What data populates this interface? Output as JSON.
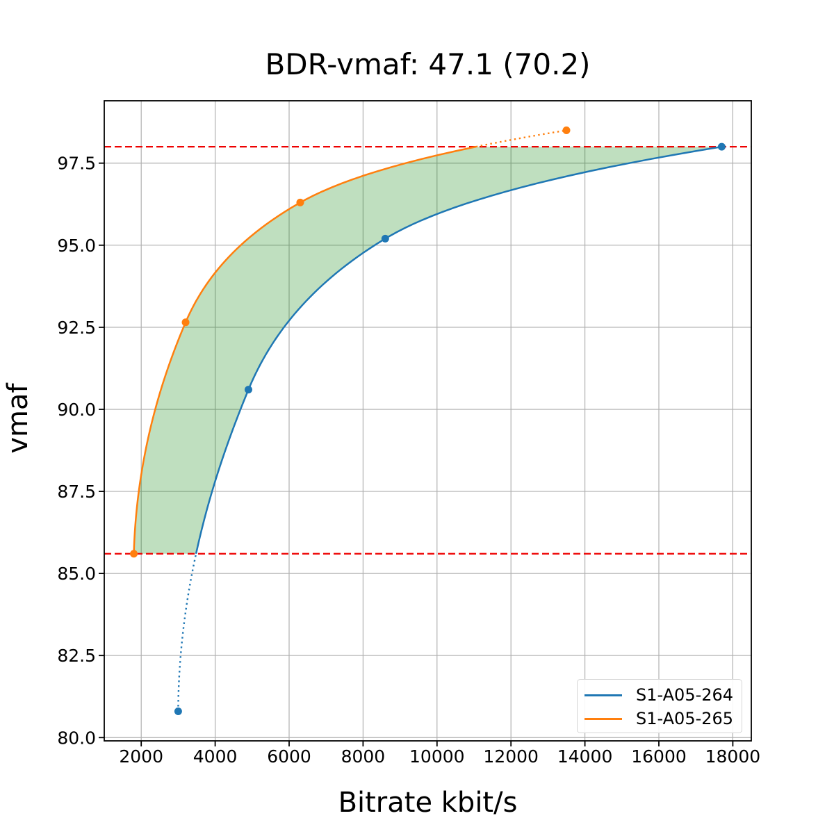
{
  "figure": {
    "title": "BDR-vmaf: 47.1 (70.2)",
    "xlabel": "Bitrate kbit/s",
    "ylabel": "vmaf"
  },
  "legend": {
    "position": "lower right",
    "items": [
      {
        "label": "S1-A05-264",
        "color": "#1f77b4"
      },
      {
        "label": "S1-A05-265",
        "color": "#ff7f0e"
      }
    ]
  },
  "chart_data": {
    "type": "line",
    "title": "BDR-vmaf: 47.1 (70.2)",
    "xlabel": "Bitrate kbit/s",
    "ylabel": "vmaf",
    "bdr_value": 47.1,
    "bdr_value_parenthesized": 70.2,
    "xlim": [
      1000,
      18500
    ],
    "ylim": [
      79.9,
      99.4
    ],
    "x_ticks": [
      2000,
      4000,
      6000,
      8000,
      10000,
      12000,
      14000,
      16000,
      18000
    ],
    "x_tick_labels": [
      "2000",
      "4000",
      "6000",
      "8000",
      "10000",
      "12000",
      "14000",
      "16000",
      "18000"
    ],
    "y_ticks": [
      80.0,
      82.5,
      85.0,
      87.5,
      90.0,
      92.5,
      95.0,
      97.5
    ],
    "y_tick_labels": [
      "80.0",
      "82.5",
      "85.0",
      "87.5",
      "90.0",
      "92.5",
      "95.0",
      "97.5"
    ],
    "grid": true,
    "legend_position": "lower right",
    "series": [
      {
        "name": "S1-A05-264",
        "color": "#1f77b4",
        "points": [
          [
            3000,
            80.8
          ],
          [
            4900,
            90.6
          ],
          [
            8600,
            95.2
          ],
          [
            17700,
            98.0
          ]
        ]
      },
      {
        "name": "S1-A05-265",
        "color": "#ff7f0e",
        "points": [
          [
            1800,
            85.6
          ],
          [
            3200,
            92.65
          ],
          [
            6300,
            96.3
          ],
          [
            13500,
            98.5
          ]
        ]
      }
    ],
    "overlap_interval": {
      "vmaf_low": 85.6,
      "vmaf_high": 98.0,
      "line_color": "#ee0000",
      "line_style": "dashed"
    },
    "shaded_region": {
      "fill_color": "#008000",
      "fill_alpha": 0.25
    },
    "interpolation": "monotone-cubic-on-log-bitrate"
  },
  "style_colors": {
    "grid": "#b0b0b0",
    "spine": "#000000",
    "background": "#ffffff"
  }
}
